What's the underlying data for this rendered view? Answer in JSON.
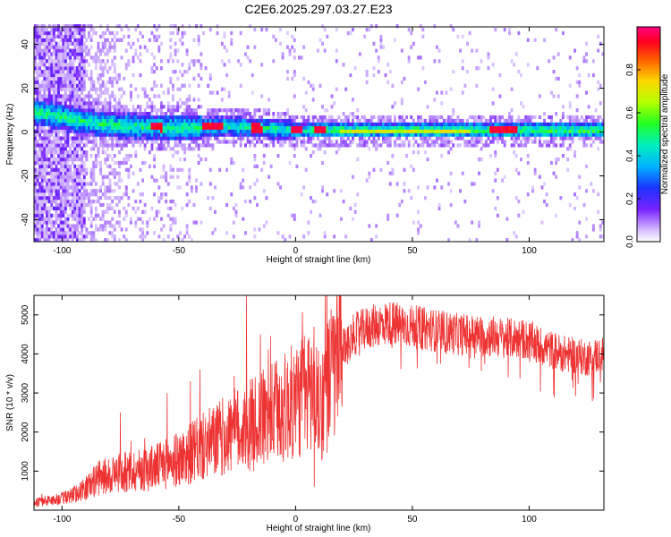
{
  "title": "C2E6.2025.297.03.27.E23",
  "chart_data": [
    {
      "type": "heatmap",
      "xlabel": "Height of straight line (km)",
      "ylabel": "Frequency (Hz)",
      "xlim": [
        -112,
        132
      ],
      "ylim": [
        -50,
        48
      ],
      "xticks": [
        -100,
        -50,
        0,
        50,
        100
      ],
      "yticks": [
        -40,
        -20,
        0,
        20,
        40
      ],
      "colorbar": {
        "label": "Normalized spectral amplitude",
        "range": [
          0,
          1
        ],
        "ticks": [
          0.0,
          0.2,
          0.4,
          0.6,
          0.8
        ],
        "tick_labels": [
          "0.0",
          "0.2",
          "0.4",
          "0.6",
          "0.8"
        ]
      },
      "ridge": {
        "frequency_hz": [
          [
            -95,
            5
          ],
          [
            -85,
            3
          ],
          [
            -70,
            2
          ],
          [
            -50,
            1
          ],
          [
            -30,
            2
          ],
          [
            -15,
            1
          ],
          [
            0,
            0
          ],
          [
            20,
            0
          ],
          [
            60,
            0
          ],
          [
            100,
            0
          ],
          [
            132,
            0
          ]
        ],
        "hot_spots_km": [
          -60,
          -38,
          -34,
          -17,
          0,
          10,
          85,
          88,
          92
        ]
      }
    },
    {
      "type": "line",
      "xlabel": "Height of straight line (km)",
      "ylabel": "SNR (10 * v/v)",
      "xlim": [
        -112,
        132
      ],
      "ylim": [
        0,
        5500
      ],
      "xticks": [
        -100,
        -50,
        0,
        50,
        100
      ],
      "yticks": [
        1000,
        2000,
        3000,
        4000,
        5000
      ],
      "color": "#ee3333",
      "series": [
        {
          "name": "SNR",
          "x": [
            -112,
            -105,
            -100,
            -95,
            -90,
            -85,
            -80,
            -75,
            -70,
            -65,
            -60,
            -55,
            -50,
            -45,
            -40,
            -35,
            -30,
            -25,
            -20,
            -15,
            -10,
            -5,
            0,
            5,
            8,
            10,
            15,
            20,
            25,
            30,
            35,
            40,
            45,
            50,
            55,
            60,
            65,
            70,
            75,
            80,
            85,
            90,
            95,
            100,
            105,
            110,
            115,
            120,
            125,
            132
          ],
          "values": [
            200,
            250,
            300,
            400,
            550,
            800,
            900,
            950,
            1000,
            1050,
            1100,
            1200,
            1300,
            1450,
            1600,
            1750,
            1900,
            2050,
            2150,
            2300,
            2450,
            2600,
            2800,
            3000,
            3200,
            2600,
            3400,
            4100,
            4500,
            4650,
            4750,
            4800,
            4750,
            4700,
            4650,
            4600,
            4550,
            4500,
            4500,
            4450,
            4450,
            4400,
            4400,
            4350,
            4200,
            4100,
            4000,
            3950,
            3900,
            4000
          ]
        }
      ],
      "spikes": [
        [
          -21,
          5500
        ],
        [
          -15,
          4500
        ],
        [
          -41,
          3600
        ],
        [
          8,
          5400
        ],
        [
          -75,
          2500
        ],
        [
          -55,
          3000
        ],
        [
          -45,
          3300
        ]
      ],
      "dip": [
        [
          8,
          600
        ]
      ]
    }
  ]
}
